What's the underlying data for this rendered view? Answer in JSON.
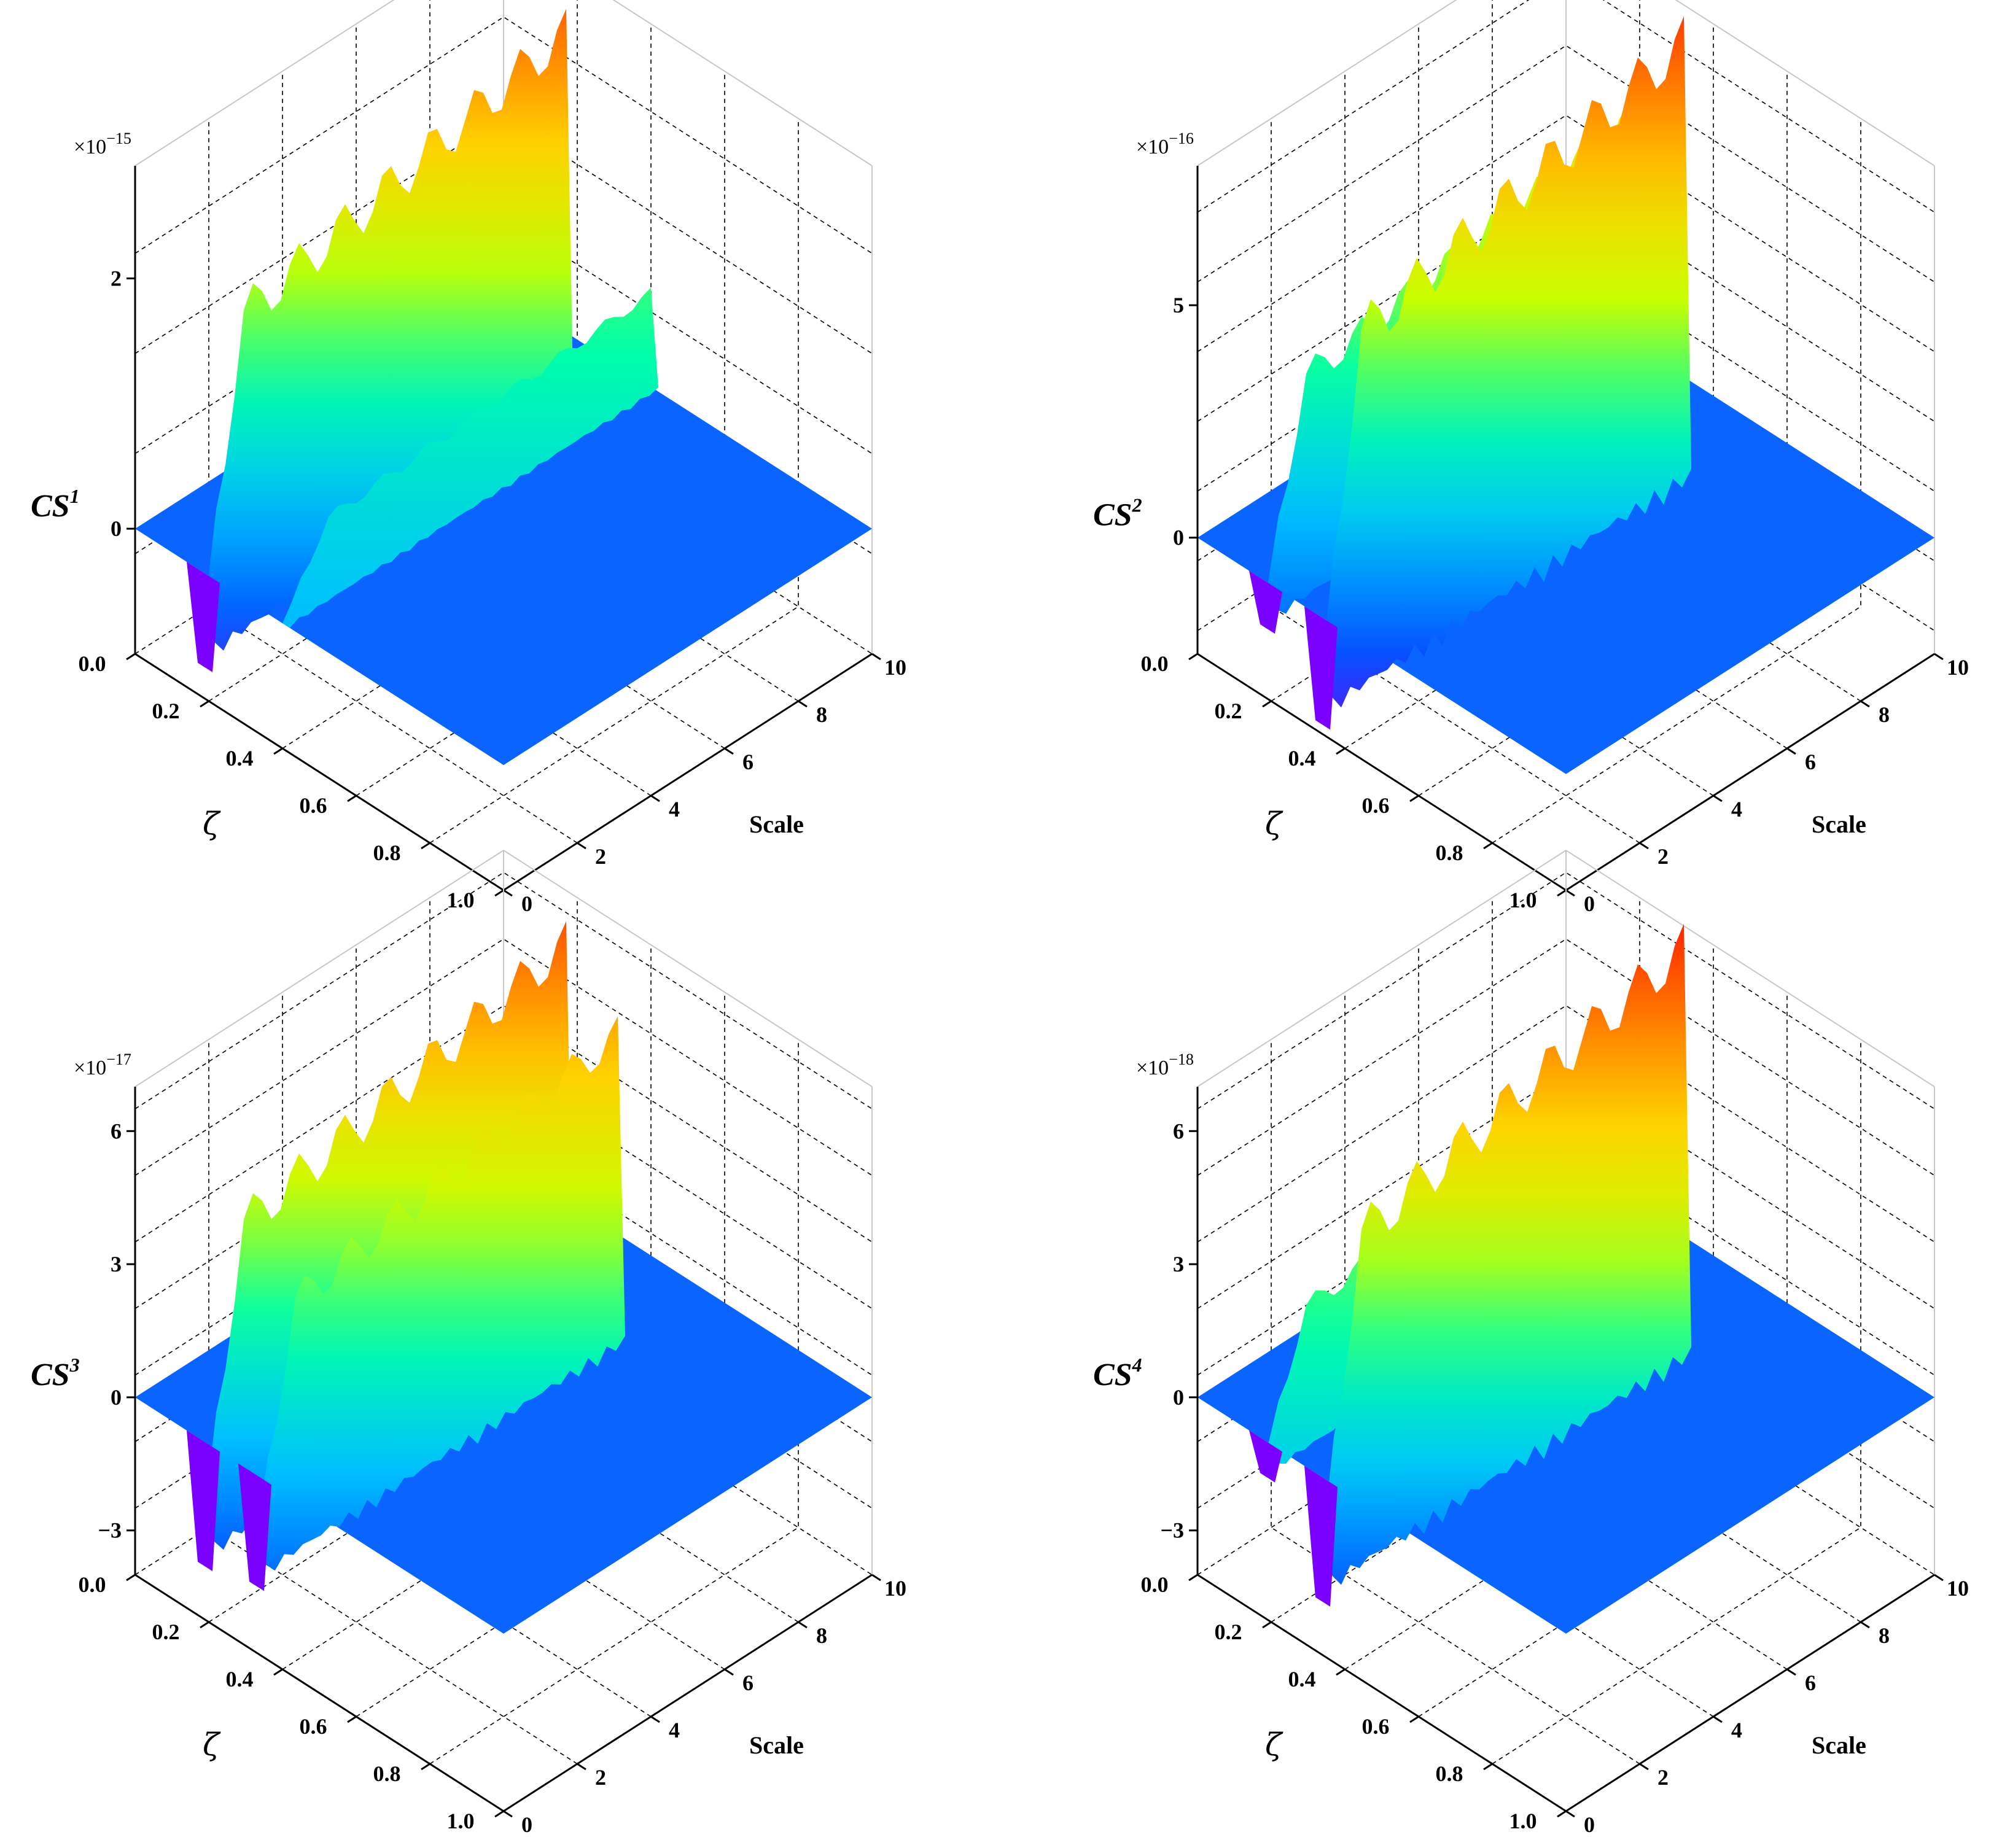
{
  "figure": {
    "panels": 4,
    "colormap": [
      "#ff00ff",
      "#7a00ff",
      "#0055ff",
      "#00c0ff",
      "#00ffaa",
      "#c8ff00",
      "#ffd200",
      "#ff7000",
      "#ff0000"
    ]
  },
  "chart_data": [
    {
      "type": "surface3d",
      "zlabel_base": "CS",
      "zlabel_sup": "1",
      "multiplier": "×10",
      "multiplier_exp": "−15",
      "xlabel": "ζ",
      "ylabel": "Scale",
      "xticks": [
        "0.0",
        "0.2",
        "0.4",
        "0.6",
        "0.8",
        "1.0"
      ],
      "yticks": [
        "0",
        "2",
        "4",
        "6",
        "8",
        "10"
      ],
      "zticks": [
        "0",
        "2"
      ],
      "zlim": [
        -1.0,
        2.9
      ],
      "bands": [
        {
          "zeta": 0.17,
          "peak": 2.4,
          "trough": -0.75
        },
        {
          "zeta": 0.4,
          "peak": 0.75,
          "trough": 0.0
        }
      ]
    },
    {
      "type": "surface3d",
      "zlabel_base": "CS",
      "zlabel_sup": "2",
      "multiplier": "×10",
      "multiplier_exp": "−16",
      "xlabel": "ζ",
      "ylabel": "Scale",
      "xticks": [
        "0.0",
        "0.2",
        "0.4",
        "0.6",
        "0.8",
        "1.0"
      ],
      "yticks": [
        "0",
        "2",
        "4",
        "6",
        "8",
        "10"
      ],
      "zticks": [
        "0",
        "5"
      ],
      "zlim": [
        -2.5,
        8.0
      ],
      "bands": [
        {
          "zeta": 0.17,
          "peak": 4.8,
          "trough": -1.0
        },
        {
          "zeta": 0.32,
          "peak": 7.2,
          "trough": -2.3
        }
      ]
    },
    {
      "type": "surface3d",
      "zlabel_base": "CS",
      "zlabel_sup": "3",
      "multiplier": "×10",
      "multiplier_exp": "−17",
      "xlabel": "ζ",
      "ylabel": "Scale",
      "xticks": [
        "0.0",
        "0.2",
        "0.4",
        "0.6",
        "0.8",
        "1.0"
      ],
      "yticks": [
        "0",
        "2",
        "4",
        "6",
        "8",
        "10"
      ],
      "zticks": [
        "0",
        "3",
        "6",
        "−3"
      ],
      "zlim": [
        -4.0,
        7.0
      ],
      "bands": [
        {
          "zeta": 0.17,
          "peak": 5.8,
          "trough": -2.8
        },
        {
          "zeta": 0.31,
          "peak": 4.5,
          "trough": -2.5
        }
      ]
    },
    {
      "type": "surface3d",
      "zlabel_base": "CS",
      "zlabel_sup": "4",
      "multiplier": "×10",
      "multiplier_exp": "−18",
      "xlabel": "ζ",
      "ylabel": "Scale",
      "xticks": [
        "0.0",
        "0.2",
        "0.4",
        "0.6",
        "0.8",
        "1.0"
      ],
      "yticks": [
        "0",
        "2",
        "4",
        "6",
        "8",
        "10"
      ],
      "zticks": [
        "0",
        "3",
        "6",
        "−3"
      ],
      "zlim": [
        -4.0,
        7.0
      ],
      "bands": [
        {
          "zeta": 0.17,
          "peak": 3.0,
          "trough": -0.8
        },
        {
          "zeta": 0.32,
          "peak": 6.5,
          "trough": -2.8
        }
      ]
    }
  ]
}
